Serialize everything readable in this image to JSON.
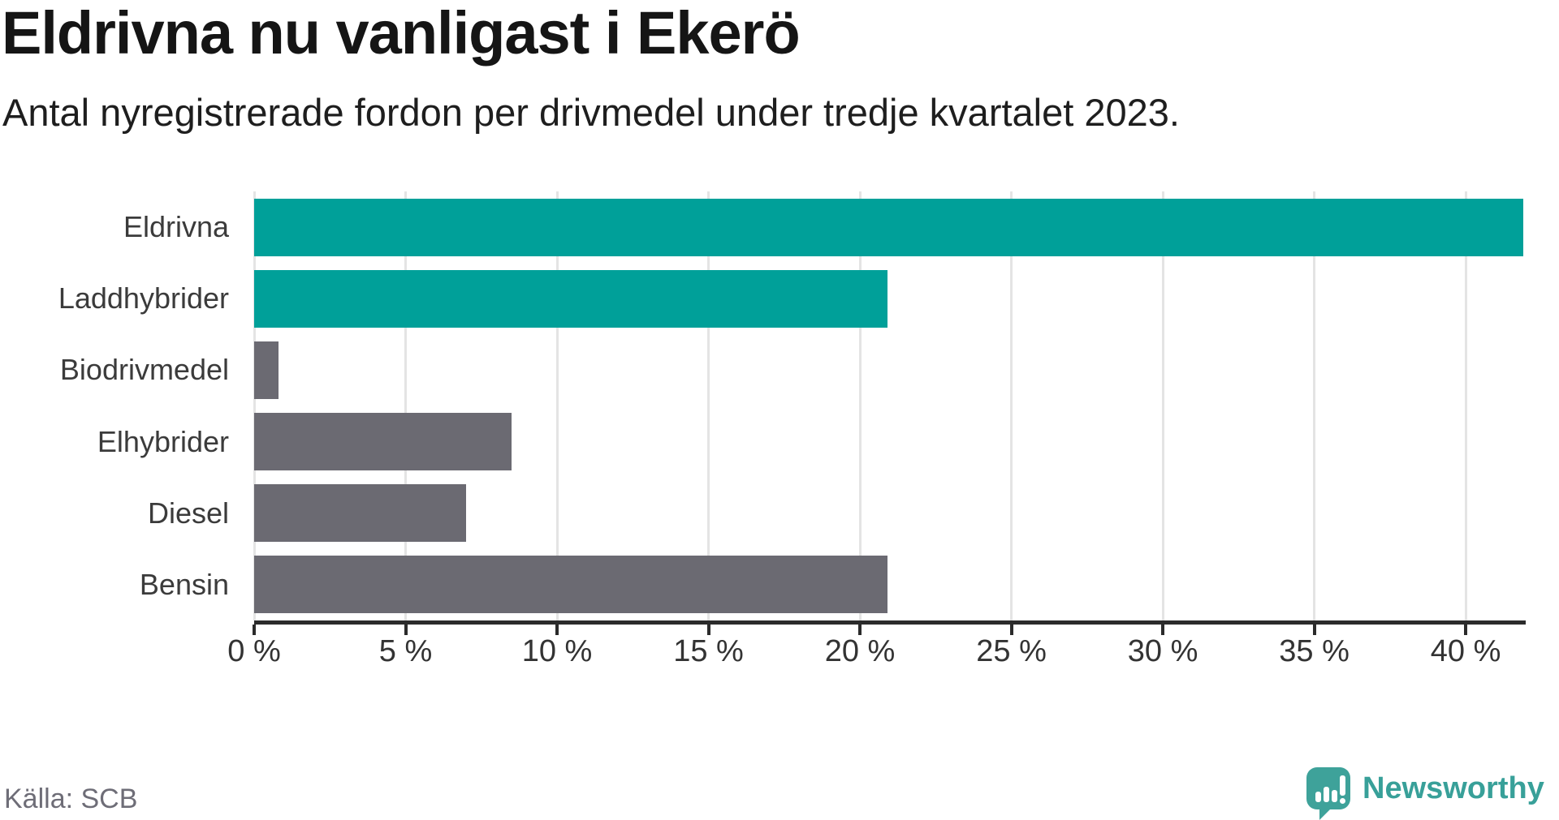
{
  "header": {
    "title": "Eldrivna nu vanligast i Ekerö",
    "subtitle": "Antal nyregistrerade fordon per drivmedel under tredje kvartalet 2023."
  },
  "footer": {
    "source": "Källa: SCB",
    "brand": "Newsworthy"
  },
  "colors": {
    "highlight": "#00a099",
    "muted": "#6b6a72",
    "grid": "#e4e4e4",
    "axis": "#2b2b2b",
    "brand_teal": "#3ea29a"
  },
  "chart_data": {
    "type": "bar",
    "orientation": "horizontal",
    "title": "Eldrivna nu vanligast i Ekerö",
    "subtitle": "Antal nyregistrerade fordon per drivmedel under tredje kvartalet 2023.",
    "categories": [
      "Eldrivna",
      "Laddhybrider",
      "Biodrivmedel",
      "Elhybrider",
      "Diesel",
      "Bensin"
    ],
    "values": [
      41.9,
      20.9,
      0.8,
      8.5,
      7.0,
      20.9
    ],
    "unit": "%",
    "bar_styles": [
      "highlight",
      "highlight",
      "muted",
      "muted",
      "muted",
      "muted"
    ],
    "xlim": [
      0,
      41.9
    ],
    "x_ticks": [
      0,
      5,
      10,
      15,
      20,
      25,
      30,
      35,
      40
    ],
    "x_tick_labels": [
      "0 %",
      "5 %",
      "10 %",
      "15 %",
      "20 %",
      "25 %",
      "30 %",
      "35 %",
      "40 %"
    ],
    "grid": true,
    "legend": false
  }
}
